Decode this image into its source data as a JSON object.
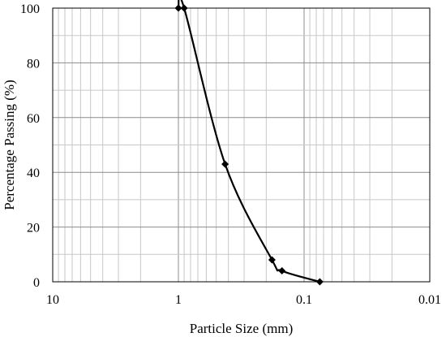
{
  "chart_data": {
    "type": "scatter",
    "title": "",
    "xlabel": "Particle Size (mm)",
    "ylabel": "Percentage Passing (%)",
    "x_scale": "log",
    "x_reversed": true,
    "xlim": [
      10,
      0.01
    ],
    "ylim": [
      0,
      100
    ],
    "x_ticks": [
      "10",
      "1",
      "0.1",
      "0.01"
    ],
    "y_ticks": [
      "0",
      "20",
      "40",
      "60",
      "80",
      "100"
    ],
    "grid": true,
    "line_color": "#000000",
    "series": [
      {
        "x": [
          1.0,
          0.9,
          0.425,
          0.18,
          0.15,
          0.075
        ],
        "y": [
          100,
          100,
          43,
          8,
          4,
          0
        ]
      }
    ]
  }
}
